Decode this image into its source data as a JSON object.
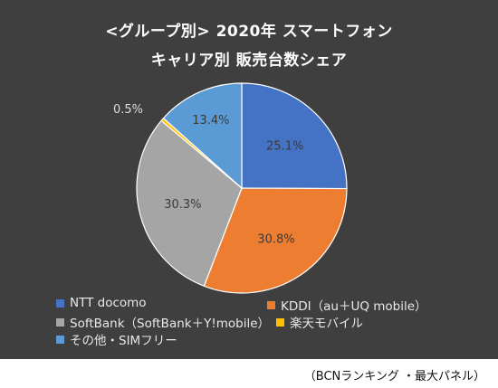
{
  "chart_data": {
    "type": "pie",
    "title_line1": "<グループ別> 2020年 スマートフォン",
    "title_line2": "キャリア別 販売台数シェア",
    "slices": [
      {
        "label": "NTT docomo",
        "value": 25.1,
        "value_label": "25.1%",
        "color": "#4472c4"
      },
      {
        "label": "KDDI（au＋UQ mobile）",
        "value": 30.8,
        "value_label": "30.8%",
        "color": "#ed7d31"
      },
      {
        "label": "SoftBank（SoftBank＋Y!mobile）",
        "value": 30.3,
        "value_label": "30.3%",
        "color": "#a5a5a5"
      },
      {
        "label": "楽天モバイル",
        "value": 0.5,
        "value_label": "0.5%",
        "color": "#ffc000"
      },
      {
        "label": "その他・SIMフリー",
        "value": 13.4,
        "value_label": "13.4%",
        "color": "#5b9bd5"
      }
    ],
    "legend_position": "bottom",
    "background": "#3f3f3f"
  },
  "source_note": "（BCNランキング ・最大パネル）"
}
